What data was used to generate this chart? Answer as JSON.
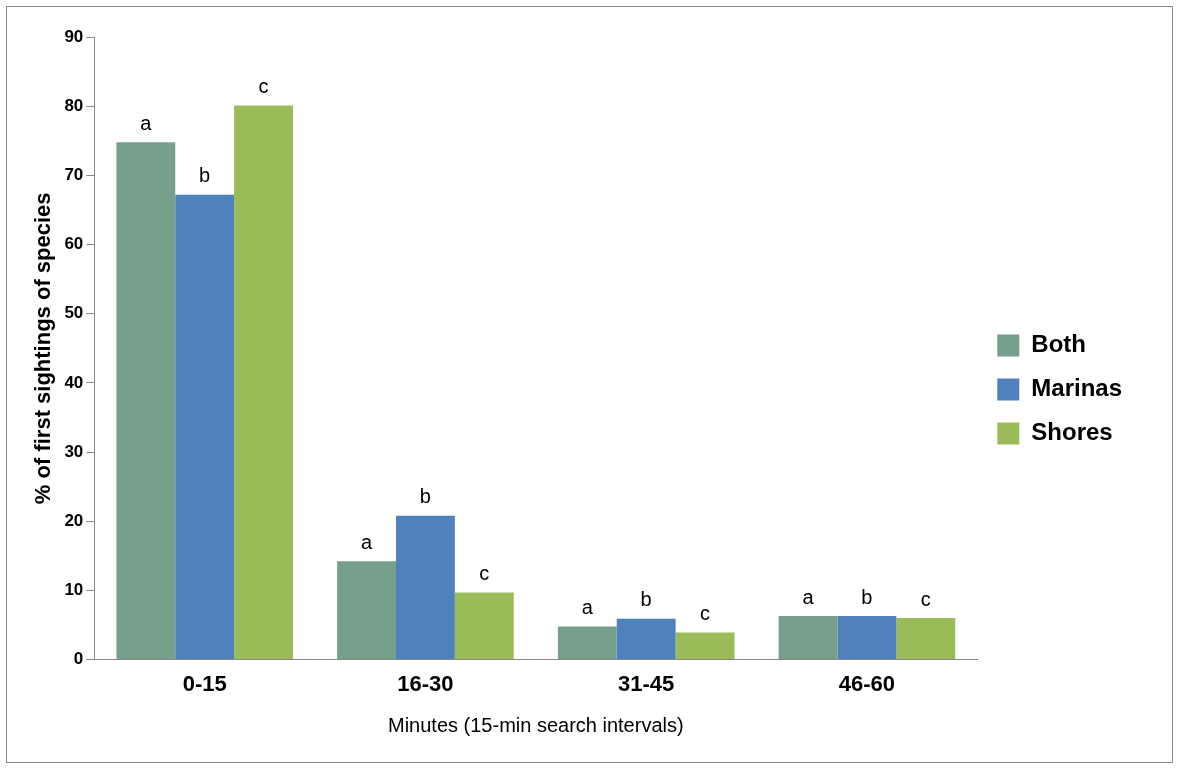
{
  "chart_data": {
    "type": "bar",
    "xlabel": "Minutes (15-min search intervals)",
    "ylabel": "% of first sightings of species",
    "categories": [
      "0-15",
      "16-30",
      "31-45",
      "46-60"
    ],
    "series": [
      {
        "name": "Both",
        "color": "#76a08b",
        "values": [
          74.8,
          14.2,
          4.8,
          6.3
        ]
      },
      {
        "name": "Marinas",
        "color": "#4f81bd",
        "values": [
          67.2,
          20.8,
          5.9,
          6.3
        ]
      },
      {
        "name": "Shores",
        "color": "#9bbb59",
        "values": [
          80.1,
          9.7,
          3.9,
          6.0
        ]
      }
    ],
    "ylim": [
      0,
      90
    ],
    "yticks": [
      0,
      10,
      20,
      30,
      40,
      50,
      60,
      70,
      80,
      90
    ],
    "grid": false,
    "legend": "right",
    "annotations": [
      "a",
      "b",
      "c",
      "a",
      "b",
      "c",
      "a",
      "b",
      "c",
      "a",
      "b",
      "c"
    ]
  }
}
